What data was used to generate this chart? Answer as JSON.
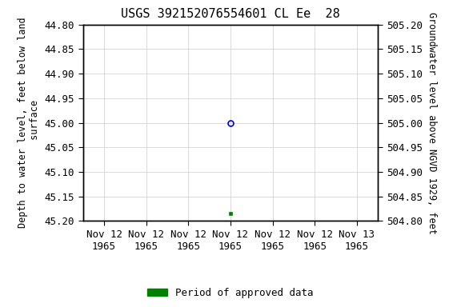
{
  "title": "USGS 392152076554601 CL Ee  28",
  "yleft_label": "Depth to water level, feet below land\n surface",
  "yright_label": "Groundwater level above NGVD 1929, feet",
  "yleft_min": 44.8,
  "yleft_max": 45.2,
  "yright_min": 504.8,
  "yright_max": 505.2,
  "yleft_ticks": [
    44.8,
    44.85,
    44.9,
    44.95,
    45.0,
    45.05,
    45.1,
    45.15,
    45.2
  ],
  "yright_ticks": [
    505.2,
    505.15,
    505.1,
    505.05,
    505.0,
    504.95,
    504.9,
    504.85,
    504.8
  ],
  "x_num_ticks": 7,
  "x_min": 0.0,
  "x_max": 6.0,
  "x_tick_positions": [
    0,
    1,
    2,
    3,
    4,
    5,
    6
  ],
  "x_tick_labels": [
    "Nov 12\n1965",
    "Nov 12\n1965",
    "Nov 12\n1965",
    "Nov 12\n1965",
    "Nov 12\n1965",
    "Nov 12\n1965",
    "Nov 13\n1965"
  ],
  "data_point_x": 3.0,
  "data_point_y_circle": 45.0,
  "data_point_y_square": 45.185,
  "open_circle_color": "#0000cc",
  "filled_square_color": "#008000",
  "background_color": "#ffffff",
  "grid_color": "#cccccc",
  "legend_label": "Period of approved data",
  "legend_color": "#008000",
  "font_color": "#000000",
  "title_fontsize": 11,
  "axis_label_fontsize": 8.5,
  "tick_fontsize": 9,
  "legend_fontsize": 9
}
